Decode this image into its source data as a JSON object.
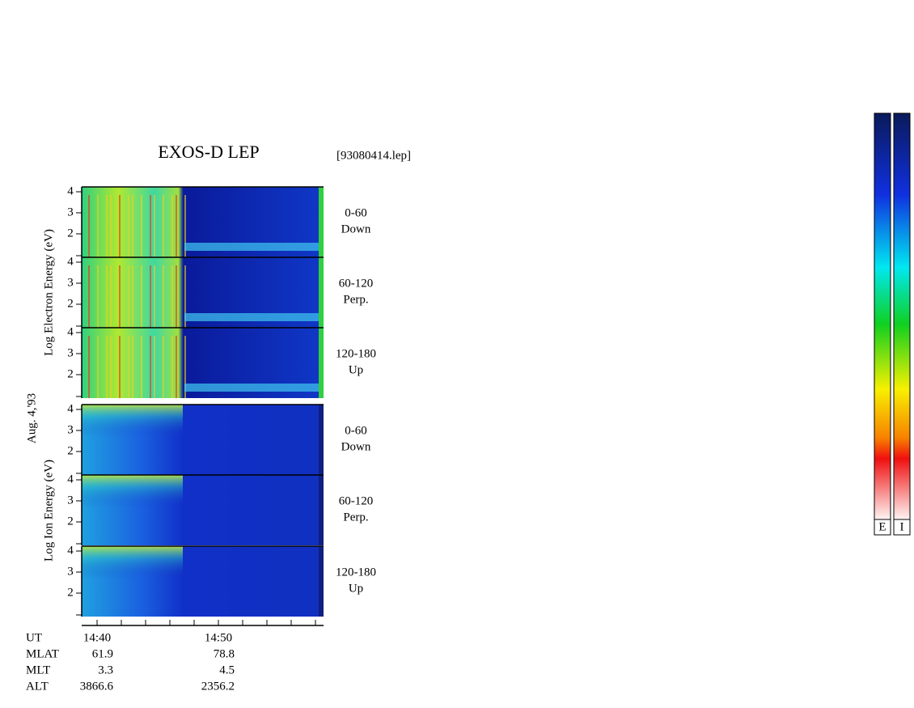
{
  "header": {
    "title": "EXOS-D LEP",
    "file": "[93080414.lep]"
  },
  "date": "Aug. 4,'93",
  "groups": [
    {
      "axis_label": "Log  Electron  Energy (eV)",
      "kind": "electron",
      "panels": [
        {
          "range": "0-60",
          "direction": "Down",
          "ticks": [
            "4",
            "3",
            "2"
          ]
        },
        {
          "range": "60-120",
          "direction": "Perp.",
          "ticks": [
            "4",
            "3",
            "2"
          ]
        },
        {
          "range": "120-180",
          "direction": "Up",
          "ticks": [
            "4",
            "3",
            "2"
          ]
        }
      ]
    },
    {
      "axis_label": "Log  Ion  Energy (eV)",
      "kind": "ion",
      "panels": [
        {
          "range": "0-60",
          "direction": "Down",
          "ticks": [
            "4",
            "3",
            "2"
          ]
        },
        {
          "range": "60-120",
          "direction": "Perp.",
          "ticks": [
            "4",
            "3",
            "2"
          ]
        },
        {
          "range": "120-180",
          "direction": "Up",
          "ticks": [
            "4",
            "3",
            "2"
          ]
        }
      ]
    }
  ],
  "footer": {
    "labels": [
      "UT",
      "MLAT",
      "MLT",
      "ALT"
    ],
    "columns": [
      [
        "14:40",
        "61.9",
        "3.3",
        "3866.6"
      ],
      [
        "14:50",
        "78.8",
        "4.5",
        "2356.2"
      ]
    ]
  },
  "colorbars": [
    "E",
    "I"
  ]
}
